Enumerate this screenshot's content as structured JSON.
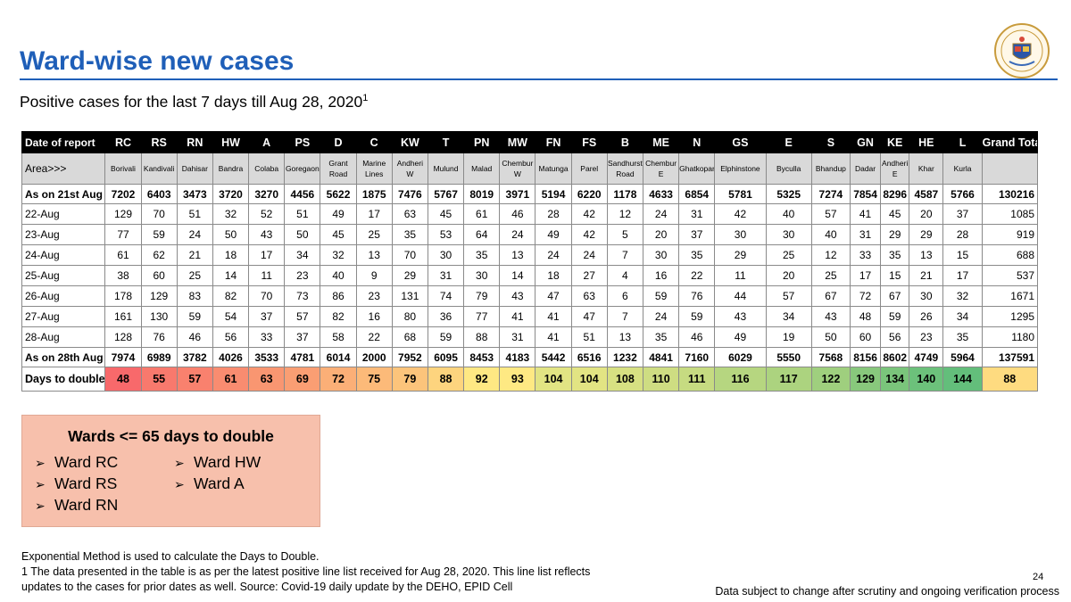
{
  "header": {
    "title": "Ward-wise new cases",
    "subtitle": "Positive cases for the last 7 days till Aug 28, 2020",
    "subtitle_sup": "1"
  },
  "logo": {
    "icon": "municipal-seal-icon",
    "text": "बृहन्मुंबई महानगरपालिका"
  },
  "table": {
    "corner_label": "Date of report",
    "wards": [
      "RC",
      "RS",
      "RN",
      "HW",
      "A",
      "PS",
      "D",
      "C",
      "KW",
      "T",
      "PN",
      "MW",
      "FN",
      "FS",
      "B",
      "ME",
      "N",
      "GS",
      "E",
      "S",
      "GN",
      "KE",
      "HE",
      "L"
    ],
    "total_label": "Grand Total",
    "area_label": "Area>>>",
    "areas": [
      "Borivali",
      "Kandivali",
      "Dahisar",
      "Bandra",
      "Colaba",
      "Goregaon",
      "Grant Road",
      "Marine Lines",
      "Andheri W",
      "Mulund",
      "Malad",
      "Chembur W",
      "Matunga",
      "Parel",
      "Sandhurst Road",
      "Chembur E",
      "Ghatkopar",
      "Elphinstone",
      "Byculla",
      "Bhandup",
      "Dadar",
      "Andheri E",
      "Khar",
      "Kurla"
    ],
    "rows": [
      {
        "label": "As on 21st Aug",
        "type": "bold",
        "values": [
          "7202",
          "6403",
          "3473",
          "3720",
          "3270",
          "4456",
          "5622",
          "1875",
          "7476",
          "5767",
          "8019",
          "3971",
          "5194",
          "6220",
          "1178",
          "4633",
          "6854",
          "5781",
          "5325",
          "7274",
          "7854",
          "8296",
          "4587",
          "5766"
        ],
        "total": "130216"
      },
      {
        "label": "22-Aug",
        "type": "daily",
        "values": [
          "129",
          "70",
          "51",
          "32",
          "52",
          "51",
          "49",
          "17",
          "63",
          "45",
          "61",
          "46",
          "28",
          "42",
          "12",
          "24",
          "31",
          "42",
          "40",
          "57",
          "41",
          "45",
          "20",
          "37"
        ],
        "total": "1085"
      },
      {
        "label": "23-Aug",
        "type": "daily",
        "values": [
          "77",
          "59",
          "24",
          "50",
          "43",
          "50",
          "45",
          "25",
          "35",
          "53",
          "64",
          "24",
          "49",
          "42",
          "5",
          "20",
          "37",
          "30",
          "30",
          "40",
          "31",
          "29",
          "29",
          "28"
        ],
        "total": "919"
      },
      {
        "label": "24-Aug",
        "type": "daily",
        "values": [
          "61",
          "62",
          "21",
          "18",
          "17",
          "34",
          "32",
          "13",
          "70",
          "30",
          "35",
          "13",
          "24",
          "24",
          "7",
          "30",
          "35",
          "29",
          "25",
          "12",
          "33",
          "35",
          "13",
          "15"
        ],
        "total": "688"
      },
      {
        "label": "25-Aug",
        "type": "daily",
        "values": [
          "38",
          "60",
          "25",
          "14",
          "11",
          "23",
          "40",
          "9",
          "29",
          "31",
          "30",
          "14",
          "18",
          "27",
          "4",
          "16",
          "22",
          "11",
          "20",
          "25",
          "17",
          "15",
          "21",
          "17"
        ],
        "total": "537"
      },
      {
        "label": "26-Aug",
        "type": "daily",
        "values": [
          "178",
          "129",
          "83",
          "82",
          "70",
          "73",
          "86",
          "23",
          "131",
          "74",
          "79",
          "43",
          "47",
          "63",
          "6",
          "59",
          "76",
          "44",
          "57",
          "67",
          "72",
          "67",
          "30",
          "32"
        ],
        "total": "1671"
      },
      {
        "label": "27-Aug",
        "type": "daily",
        "values": [
          "161",
          "130",
          "59",
          "54",
          "37",
          "57",
          "82",
          "16",
          "80",
          "36",
          "77",
          "41",
          "41",
          "47",
          "7",
          "24",
          "59",
          "43",
          "34",
          "43",
          "48",
          "59",
          "26",
          "34"
        ],
        "total": "1295"
      },
      {
        "label": "28-Aug",
        "type": "daily",
        "values": [
          "128",
          "76",
          "46",
          "56",
          "33",
          "37",
          "58",
          "22",
          "68",
          "59",
          "88",
          "31",
          "41",
          "51",
          "13",
          "35",
          "46",
          "49",
          "19",
          "50",
          "60",
          "56",
          "23",
          "35"
        ],
        "total": "1180"
      },
      {
        "label": "As on 28th Aug",
        "type": "bold",
        "values": [
          "7974",
          "6989",
          "3782",
          "4026",
          "3533",
          "4781",
          "6014",
          "2000",
          "7952",
          "6095",
          "8453",
          "4183",
          "5442",
          "6516",
          "1232",
          "4841",
          "7160",
          "6029",
          "5550",
          "7568",
          "8156",
          "8602",
          "4749",
          "5964"
        ],
        "total": "137591"
      }
    ],
    "days_row": {
      "label": "Days to double",
      "values": [
        "48",
        "55",
        "57",
        "61",
        "63",
        "69",
        "72",
        "75",
        "79",
        "88",
        "92",
        "93",
        "104",
        "104",
        "108",
        "110",
        "111",
        "116",
        "117",
        "122",
        "129",
        "134",
        "140",
        "144"
      ],
      "total": "88",
      "colors": [
        "#f8696b",
        "#f8796d",
        "#f9816e",
        "#f98c70",
        "#f99671",
        "#fa9e73",
        "#fbaf77",
        "#fcba79",
        "#fcc47b",
        "#fdd47e",
        "#fee883",
        "#fee983",
        "#e2e483",
        "#e2e483",
        "#d7e082",
        "#cedd82",
        "#c6db81",
        "#b6d680",
        "#acd37f",
        "#9fcf7e",
        "#88c87c",
        "#7ac57b",
        "#6cc17b",
        "#63be7b"
      ],
      "total_color": "#fedb80"
    }
  },
  "callout": {
    "title": "Wards <= 65 days to double",
    "col1": [
      "Ward RC",
      "Ward RS",
      "Ward RN"
    ],
    "col2": [
      "Ward HW",
      "Ward A"
    ],
    "bullet": "➢"
  },
  "footnotes": {
    "line1": "Exponential Method is used to calculate the Days to Double.",
    "line2": "1 The data presented in the table is as per the latest positive line list received for Aug 28, 2020. This line list reflects",
    "line3": "updates to the cases for prior dates as well. Source: Covid-19 daily update by the DEHO, EPID Cell"
  },
  "page_number": "24",
  "disclaimer": "Data subject to change after scrutiny and ongoing verification process"
}
